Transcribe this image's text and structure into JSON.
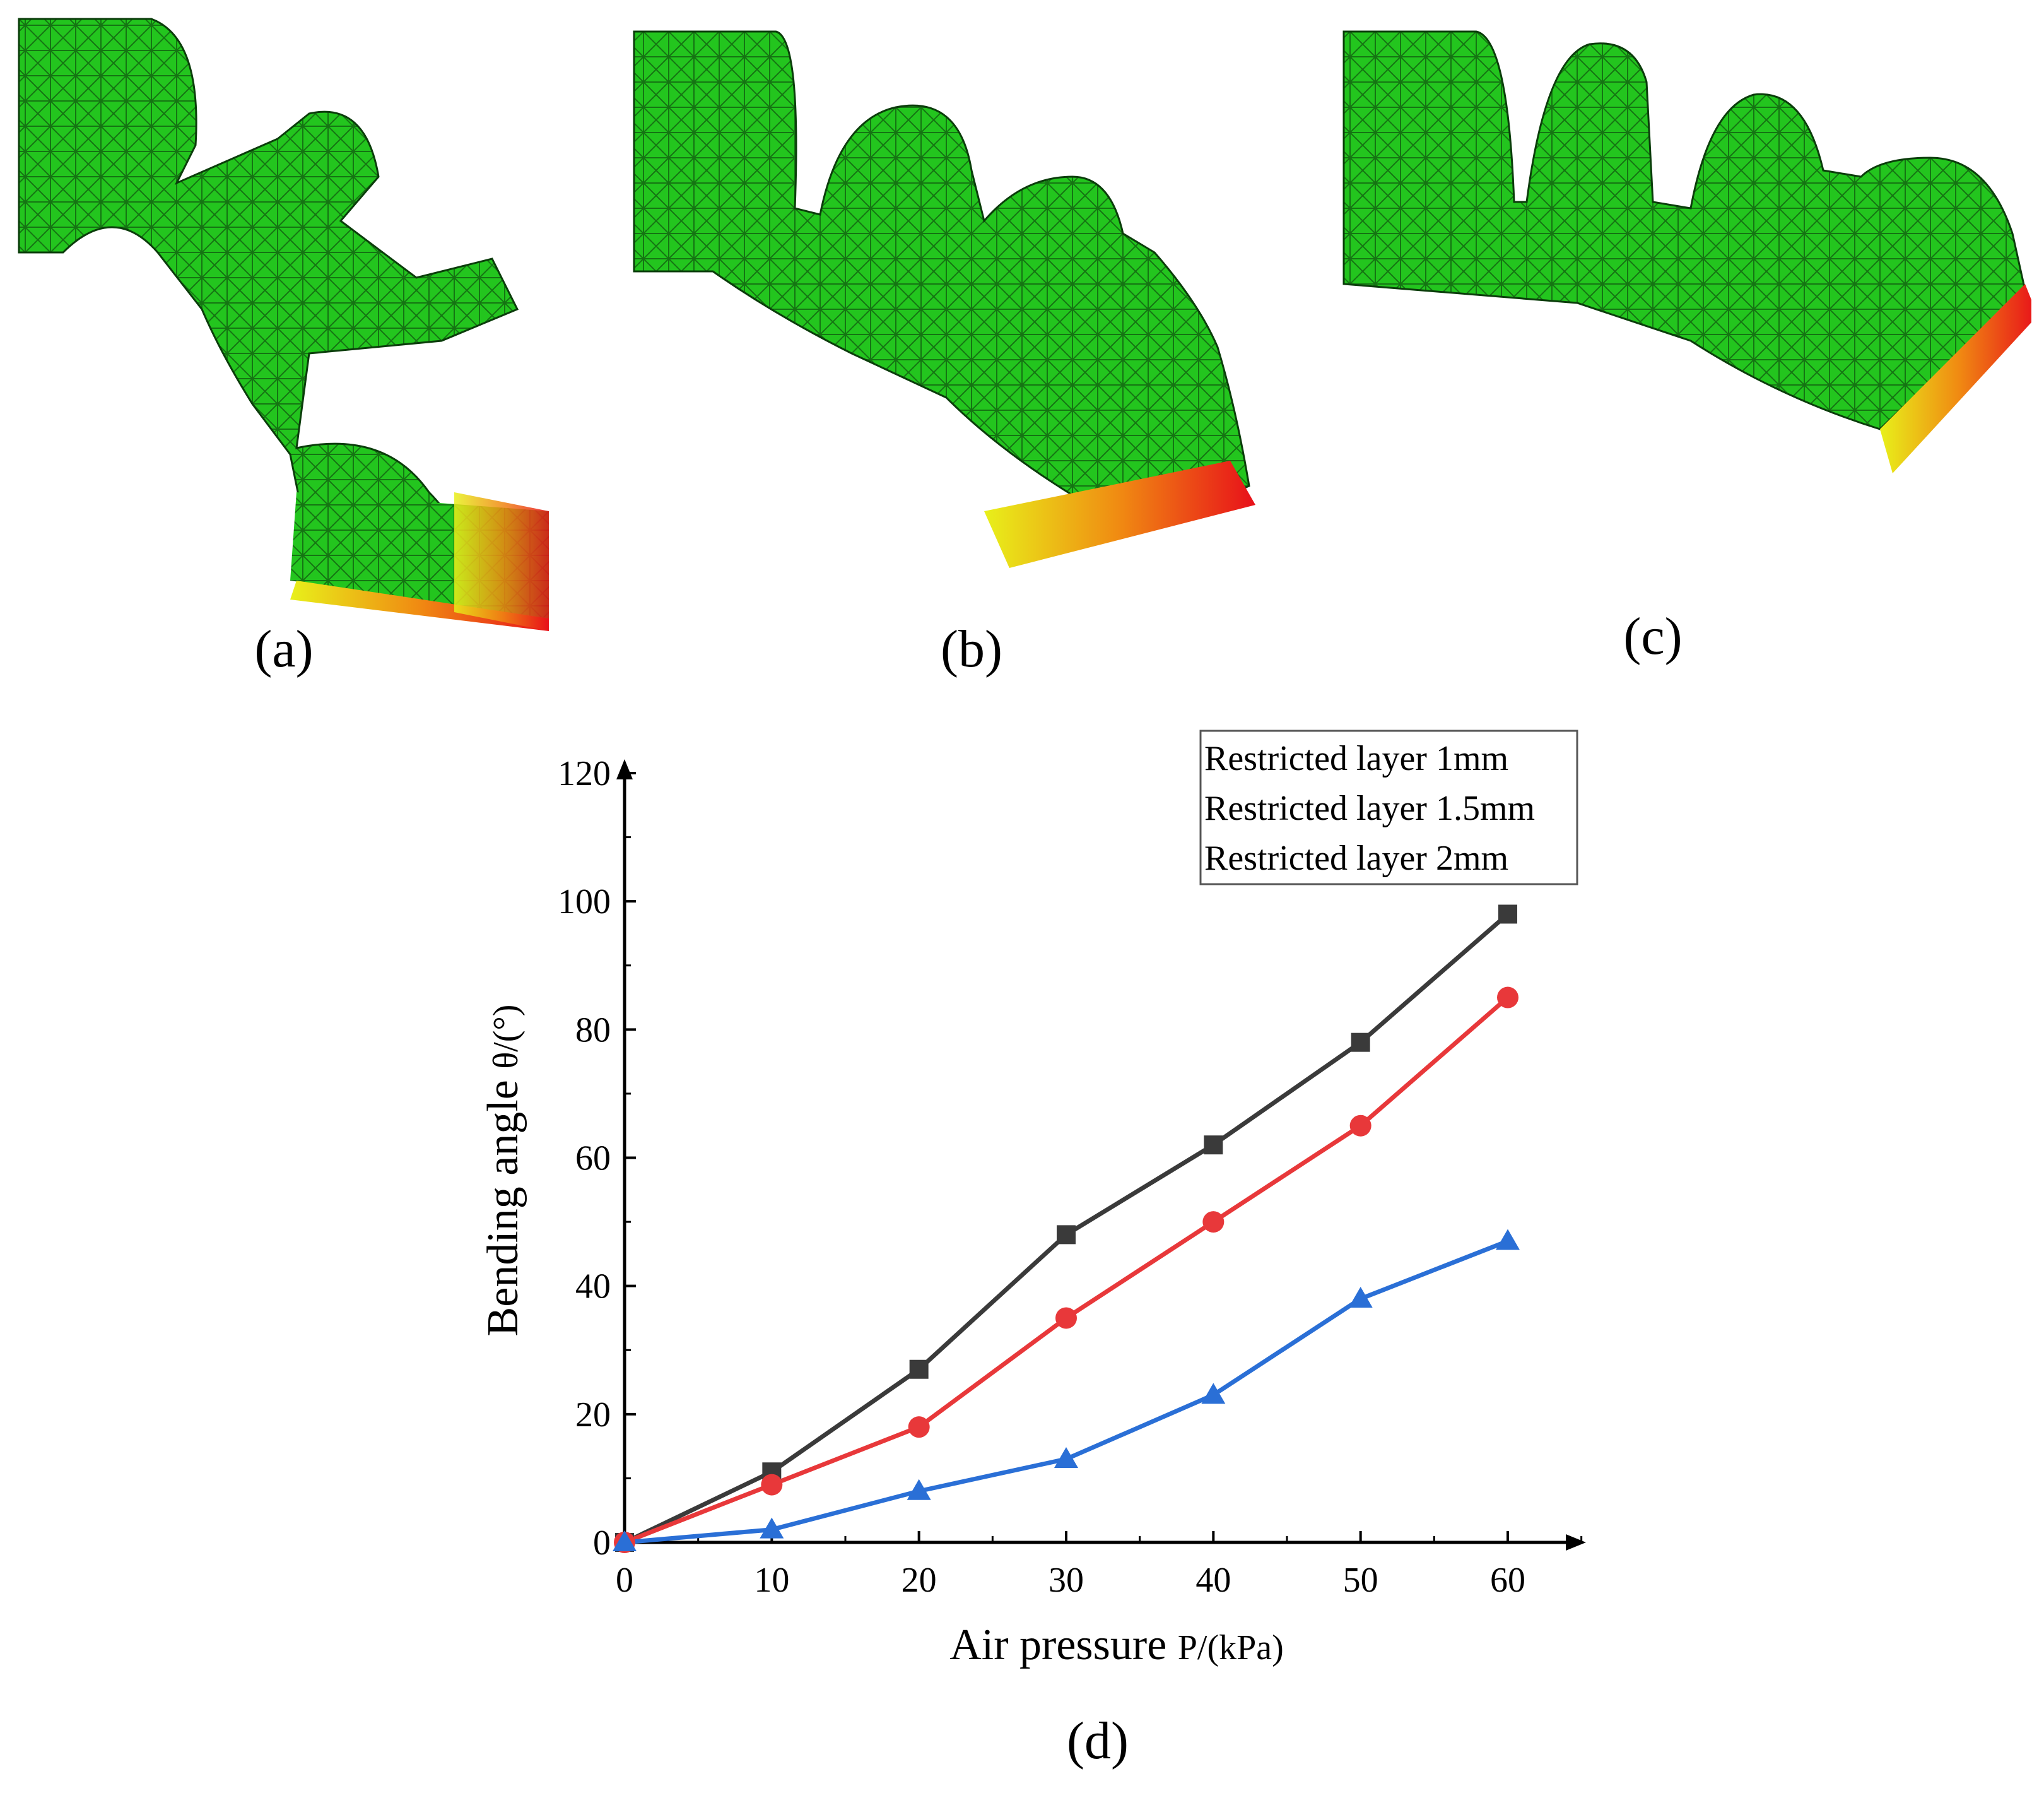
{
  "panels": [
    {
      "label": "(a)"
    },
    {
      "label": "(b)"
    },
    {
      "label": "(c)"
    },
    {
      "label": "(d)"
    }
  ],
  "colors": {
    "mesh_green": "#22c71d",
    "mesh_line": "#0b3d0b",
    "series_1": "#3a3a3a",
    "series_2": "#e8383a",
    "series_3": "#2a6fd6"
  },
  "chart_data": {
    "type": "line",
    "xlabel_main": "Air pressure ",
    "xlabel_unit": "P/(kPa)",
    "ylabel_main": "Bending angle ",
    "ylabel_unit": "θ/(°)",
    "xlim": [
      0,
      65
    ],
    "ylim": [
      0,
      120
    ],
    "xticks": [
      0,
      10,
      20,
      30,
      40,
      50,
      60
    ],
    "yticks": [
      0,
      20,
      40,
      60,
      80,
      100,
      120
    ],
    "grid": false,
    "legend_position": "top-right",
    "x": [
      0,
      10,
      20,
      30,
      40,
      50,
      60
    ],
    "series": [
      {
        "name": "Restricted layer 1mm",
        "marker": "square",
        "values": [
          0,
          11,
          27,
          48,
          62,
          78,
          98
        ]
      },
      {
        "name": "Restricted layer 1.5mm",
        "marker": "circle",
        "values": [
          0,
          9,
          18,
          35,
          50,
          65,
          85
        ]
      },
      {
        "name": "Restricted layer 2mm",
        "marker": "triangle",
        "values": [
          0,
          2,
          8,
          13,
          23,
          38,
          47
        ]
      }
    ]
  }
}
